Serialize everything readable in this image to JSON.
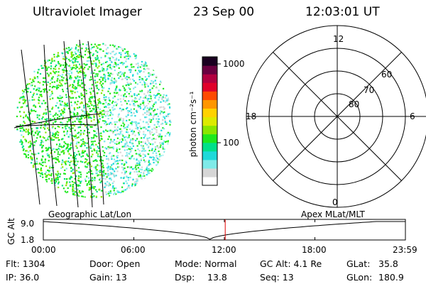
{
  "header": {
    "instrument": "Ultraviolet Imager",
    "date": "23 Sep 00",
    "time": "12:03:01 UT"
  },
  "colorbar": {
    "unit_label": "photon cm⁻²s⁻¹",
    "tick_1000": "1000",
    "tick_100": "100",
    "scale": "log",
    "range": [
      10,
      1400
    ],
    "colors": [
      "#ffffff",
      "#d6d6d6",
      "#7feae8",
      "#1ed9d9",
      "#00e08a",
      "#1ee81e",
      "#8ae600",
      "#dcea00",
      "#ffd200",
      "#ff9600",
      "#ff4a00",
      "#e0002a",
      "#b20040",
      "#6a0040",
      "#1a0020"
    ]
  },
  "polar_plot": {
    "label_12": "12",
    "label_18": "18",
    "label_6": "6",
    "label_0": "0",
    "ring_60": "60",
    "ring_70": "70",
    "ring_80": "80"
  },
  "timeline": {
    "left_caption": "Geographic Lat/Lon",
    "right_caption": "Apex MLat/MLT",
    "y_label": "GC Alt",
    "y_top": "9.0",
    "y_bottom": "1.8",
    "x_ticks": [
      "00:00",
      "06:00",
      "12:00",
      "18:00",
      "23:59"
    ],
    "marker_time": "12:03:01",
    "marker_color": "#e00000"
  },
  "footer": {
    "flt": "Flt: 1304",
    "ip": "IP: 36.0",
    "door": "Door: Open",
    "gain": "Gain: 13",
    "mode": "Mode: Normal",
    "dsp": "Dsp:",
    "dsp_value": "13.8",
    "gc_alt": "GC Alt: 4.1 Re",
    "seq": "Seq: 13",
    "glat_label": "GLat:",
    "glat_value": "35.8",
    "glon_label": "GLon:",
    "glon_value": "180.9"
  }
}
